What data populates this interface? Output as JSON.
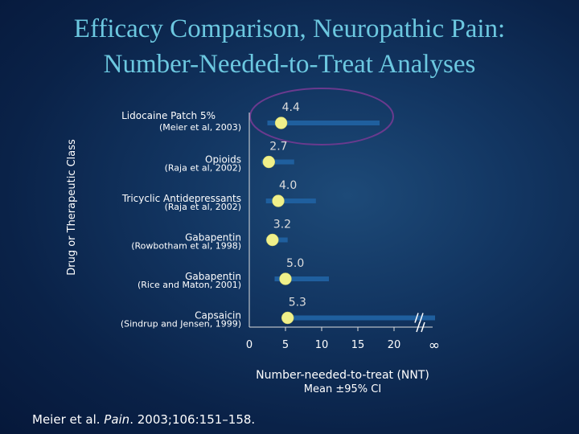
{
  "title": {
    "line1": "Efficacy Comparison, Neuropathic Pain:",
    "line2": "Number-Needed-to-Treat Analyses"
  },
  "citation": {
    "authors": "Meier et al. ",
    "journal": "Pain",
    "rest": ". 2003;106:151–158."
  },
  "colors": {
    "bar": "#1f5f9e",
    "point": "#f0f08a",
    "value_label": "#dddddd",
    "text": "#ffffff",
    "highlight_ring": "#6a3a8e"
  },
  "chart_data": {
    "type": "forest-plot",
    "ylabel": "Drug or Therapeutic Class",
    "xlabel": "Number-needed-to-treat (NNT)",
    "xlabel_sub": "Mean ±95% CI",
    "x_ticks": [
      "0",
      "5",
      "10",
      "15",
      "20",
      "∞"
    ],
    "xlim": [
      0,
      25
    ],
    "highlighted": "Lidocaine Patch 5%",
    "rows": [
      {
        "drug": "Lidocaine Patch 5%",
        "source": "(Meier et al, 2003)",
        "mean": 4.4,
        "mean_label": "4.4",
        "ci_low": 2.5,
        "ci_high": 18,
        "ci_open": false
      },
      {
        "drug": "Opioids",
        "source": "(Raja et al, 2002)",
        "mean": 2.7,
        "mean_label": "2.7",
        "ci_low": 1.7,
        "ci_high": 6.2,
        "ci_open": false
      },
      {
        "drug": "Tricyclic Antidepressants",
        "source": "(Raja et al, 2002)",
        "mean": 4.0,
        "mean_label": "4.0",
        "ci_low": 2.3,
        "ci_high": 9.2,
        "ci_open": false
      },
      {
        "drug": "Gabapentin",
        "source": "(Rowbotham et al, 1998)",
        "mean": 3.2,
        "mean_label": "3.2",
        "ci_low": 2.3,
        "ci_high": 5.3,
        "ci_open": false
      },
      {
        "drug": "Gabapentin",
        "source": "(Rice and Maton, 2001)",
        "mean": 5.0,
        "mean_label": "5.0",
        "ci_low": 3.5,
        "ci_high": 11,
        "ci_open": false
      },
      {
        "drug": "Capsaicin",
        "source": "(Sindrup and Jensen, 1999)",
        "mean": 5.3,
        "mean_label": "5.3",
        "ci_low": 4.5,
        "ci_high": null,
        "ci_open": true
      }
    ]
  }
}
